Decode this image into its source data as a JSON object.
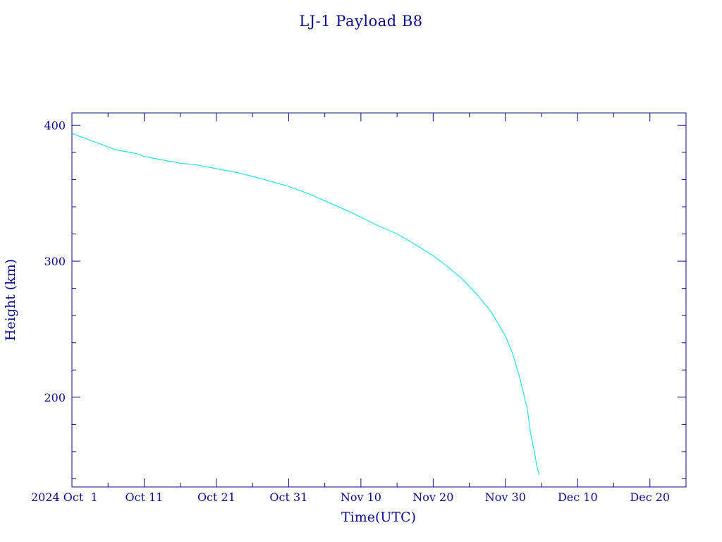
{
  "chart_data": {
    "type": "line",
    "title": "LJ-1 Payload B8",
    "xlabel": "Time(UTC)",
    "ylabel": "Height (km)",
    "x_start": "2024-10-01",
    "xlim": [
      "2024-10-01",
      "2024-12-25"
    ],
    "ylim": [
      134,
      409
    ],
    "y_ticks_labeled": [
      200,
      300,
      400
    ],
    "y_minor_step": 20,
    "x_ticks": [
      {
        "date": "2024-10-01",
        "label": "2024 Oct  1"
      },
      {
        "date": "2024-10-11",
        "label": "Oct 11"
      },
      {
        "date": "2024-10-21",
        "label": "Oct 21"
      },
      {
        "date": "2024-10-31",
        "label": "Oct 31"
      },
      {
        "date": "2024-11-10",
        "label": "Nov 10"
      },
      {
        "date": "2024-11-20",
        "label": "Nov 20"
      },
      {
        "date": "2024-11-30",
        "label": "Nov 30"
      },
      {
        "date": "2024-12-10",
        "label": "Dec 10"
      },
      {
        "date": "2024-12-20",
        "label": "Dec 20"
      }
    ],
    "grid": false,
    "colors": {
      "axes": "#0a0a8c",
      "series": "#22e0e8"
    },
    "series": [
      {
        "x": [
          "2024-10-01",
          "2024-10-02",
          "2024-10-03",
          "2024-10-04",
          "2024-10-05",
          "2024-10-06",
          "2024-10-07",
          "2024-10-08",
          "2024-10-09",
          "2024-10-10",
          "2024-10-11",
          "2024-10-12",
          "2024-10-14",
          "2024-10-16",
          "2024-10-18",
          "2024-10-21",
          "2024-10-24",
          "2024-10-27",
          "2024-10-31",
          "2024-11-03",
          "2024-11-06",
          "2024-11-09",
          "2024-11-12",
          "2024-11-15",
          "2024-11-17",
          "2024-11-20",
          "2024-11-22",
          "2024-11-24",
          "2024-11-26",
          "2024-11-28",
          "2024-11-30",
          "2024-12-01",
          "2024-12-02",
          "2024-12-03",
          "2024-12-03T12:00",
          "2024-12-04",
          "2024-12-04T08:00",
          "2024-12-04T16:00"
        ],
        "y": [
          394,
          392,
          390,
          388,
          386,
          384,
          382,
          381,
          380,
          379,
          377,
          376,
          374,
          372,
          371,
          368,
          365,
          361,
          355,
          349,
          342,
          335,
          327,
          320,
          314,
          304,
          296,
          287,
          276,
          263,
          245,
          232,
          214,
          192,
          173,
          160,
          150,
          143
        ]
      }
    ]
  }
}
